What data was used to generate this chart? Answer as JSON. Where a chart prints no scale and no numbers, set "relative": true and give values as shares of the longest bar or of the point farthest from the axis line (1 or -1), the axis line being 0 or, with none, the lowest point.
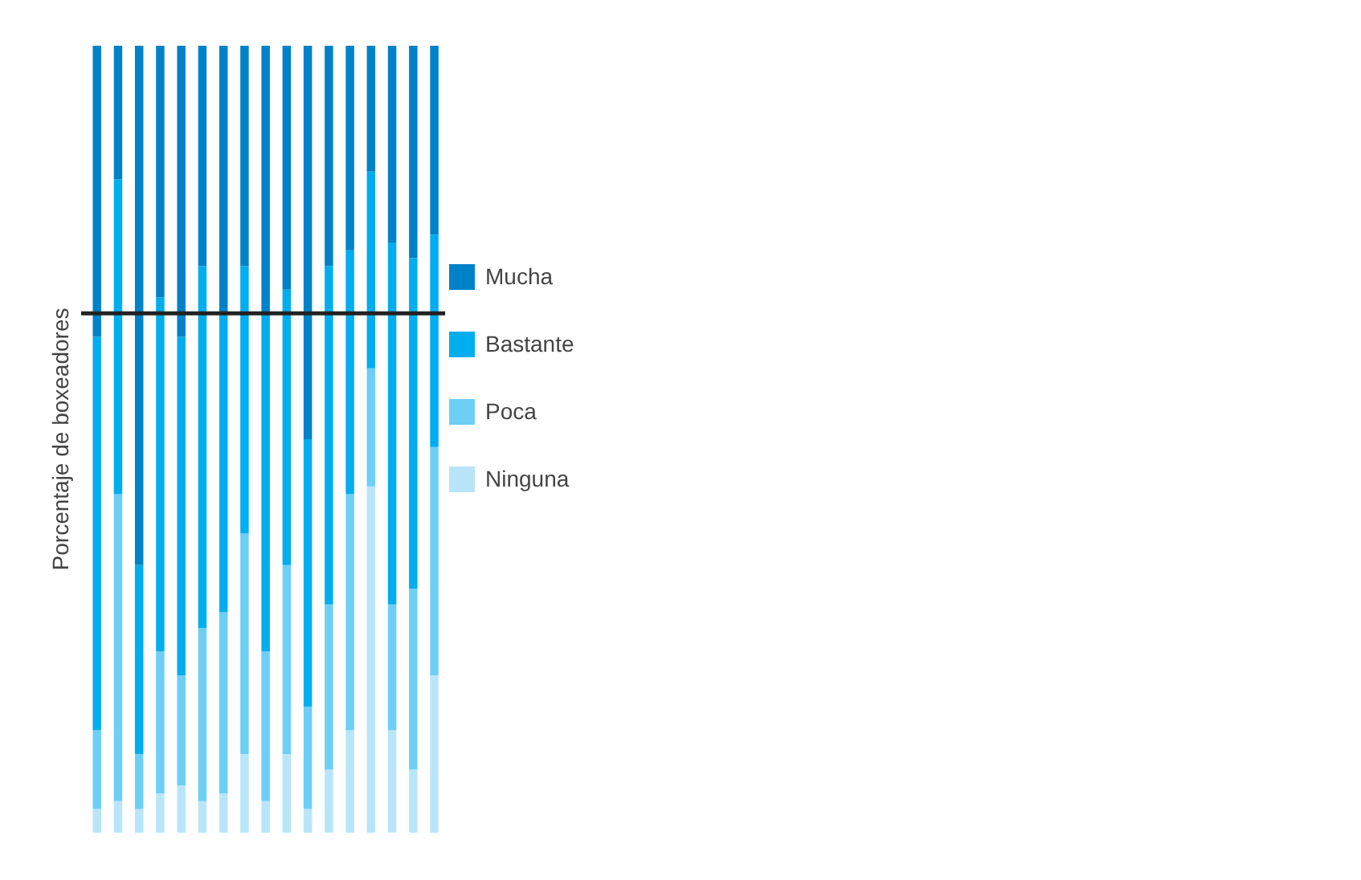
{
  "chart_data": {
    "type": "bar",
    "stacked": true,
    "relative": true,
    "ylabel": "Porcentaje de boxeadores",
    "legend": "right",
    "grid": false,
    "categories": [
      null,
      null,
      null,
      null,
      null,
      null,
      null,
      null,
      null,
      null,
      null,
      null,
      null,
      null,
      null,
      null,
      null
    ],
    "series": [
      {
        "name": "Ninguna",
        "color": "#b9e5f9",
        "values": [
          0.03,
          0.04,
          0.03,
          0.05,
          0.06,
          0.04,
          0.05,
          0.1,
          0.04,
          0.1,
          0.03,
          0.08,
          0.13,
          0.44,
          0.13,
          0.08,
          0.2
        ]
      },
      {
        "name": "Poca",
        "color": "#6dcff6",
        "values": [
          0.1,
          0.39,
          0.07,
          0.18,
          0.14,
          0.22,
          0.23,
          0.28,
          0.19,
          0.24,
          0.13,
          0.21,
          0.3,
          0.15,
          0.16,
          0.23,
          0.29
        ]
      },
      {
        "name": "Bastante",
        "color": "#00adee",
        "values": [
          0.5,
          0.4,
          0.24,
          0.45,
          0.43,
          0.46,
          0.38,
          0.34,
          0.43,
          0.35,
          0.34,
          0.43,
          0.31,
          0.25,
          0.46,
          0.42,
          0.27
        ]
      },
      {
        "name": "Mucha",
        "color": "#0082c8",
        "values": [
          0.37,
          0.17,
          0.66,
          0.32,
          0.37,
          0.28,
          0.34,
          0.28,
          0.34,
          0.31,
          0.5,
          0.28,
          0.26,
          0.16,
          0.25,
          0.27,
          0.24
        ]
      }
    ],
    "ref_lines": [
      {
        "axis": "y",
        "value": 0.66,
        "color": "#222222"
      }
    ]
  }
}
